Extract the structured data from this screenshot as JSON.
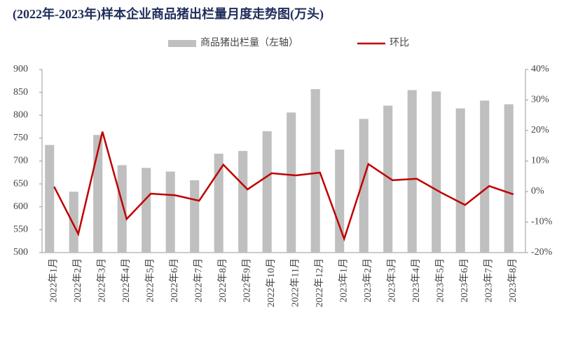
{
  "chart_data": {
    "type": "bar_line",
    "title": "(2022年-2023年)样本企业商品猪出栏量月度走势图(万头)",
    "categories": [
      "2022年1月",
      "2022年2月",
      "2022年3月",
      "2022年4月",
      "2022年5月",
      "2022年6月",
      "2022年7月",
      "2022年8月",
      "2022年9月",
      "2022年10月",
      "2022年11月",
      "2022年12月",
      "2023年1月",
      "2023年2月",
      "2023年3月",
      "2023年4月",
      "2023年5月",
      "2023年6月",
      "2023年7月",
      "2023年8月"
    ],
    "series": [
      {
        "name": "商品猪出栏量（左轴）",
        "color": "#bfbfbf",
        "type": "bar",
        "values": [
          735,
          633,
          757,
          691,
          685,
          677,
          658,
          716,
          722,
          765,
          806,
          857,
          725,
          792,
          821,
          855,
          852,
          815,
          832,
          824
        ]
      },
      {
        "name": "环比",
        "color": "#c00000",
        "type": "line",
        "axis": "y2",
        "values": [
          1.6,
          -13.9,
          19.6,
          -9.0,
          -0.7,
          -1.2,
          -3.0,
          8.8,
          0.7,
          6.0,
          5.3,
          6.2,
          -15.5,
          9.0,
          3.7,
          4.2,
          -0.3,
          -4.4,
          1.8,
          -0.9
        ]
      }
    ],
    "ylim": [
      500,
      900
    ],
    "yticks": [
      500,
      550,
      600,
      650,
      700,
      750,
      800,
      850,
      900
    ],
    "y2lim": [
      -20,
      40
    ],
    "y2ticks": [
      {
        "value": -20,
        "label": "-20%"
      },
      {
        "value": -10,
        "label": "-10%"
      },
      {
        "value": 0,
        "label": "0%"
      },
      {
        "value": 10,
        "label": "10%"
      },
      {
        "value": 20,
        "label": "20%"
      },
      {
        "value": 30,
        "label": "30%"
      },
      {
        "value": 40,
        "label": "40%"
      }
    ],
    "legend": "top"
  }
}
